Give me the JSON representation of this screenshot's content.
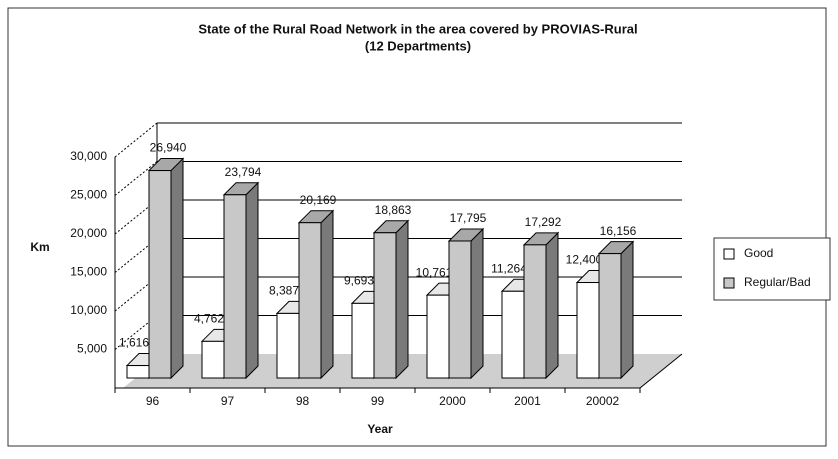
{
  "chart_data": {
    "type": "bar3d",
    "title": "State of the Rural Road Network in the area covered by PROVIAS-Rural",
    "subtitle": "(12 Departments)",
    "x_label": "Year",
    "y_label": "Km",
    "categories": [
      "96",
      "97",
      "98",
      "99",
      "2000",
      "2001",
      "20002"
    ],
    "series": [
      {
        "name": "Good",
        "color": "#ffffff",
        "values": [
          1616,
          4762,
          8387,
          9693,
          10761,
          11264,
          12400
        ],
        "value_labels": [
          "1,616",
          "4,762",
          "8,387",
          "9,693",
          "10,761",
          "11,264",
          "12,400"
        ]
      },
      {
        "name": "Regular/Bad",
        "color": "#c8c8c8",
        "values": [
          26940,
          23794,
          20169,
          18863,
          17795,
          17292,
          16156
        ],
        "value_labels": [
          "26,940",
          "23,794",
          "20,169",
          "18,863",
          "17,795",
          "17,292",
          "16,156"
        ]
      }
    ],
    "ylim": [
      0,
      30000
    ],
    "yticks": [
      {
        "value": 5000,
        "label": "5,000"
      },
      {
        "value": 10000,
        "label": "10,000"
      },
      {
        "value": 15000,
        "label": "15,000"
      },
      {
        "value": 20000,
        "label": "20,000"
      },
      {
        "value": 25000,
        "label": "25,000"
      },
      {
        "value": 30000,
        "label": "30,000"
      }
    ],
    "grid": true,
    "legend": "right"
  }
}
